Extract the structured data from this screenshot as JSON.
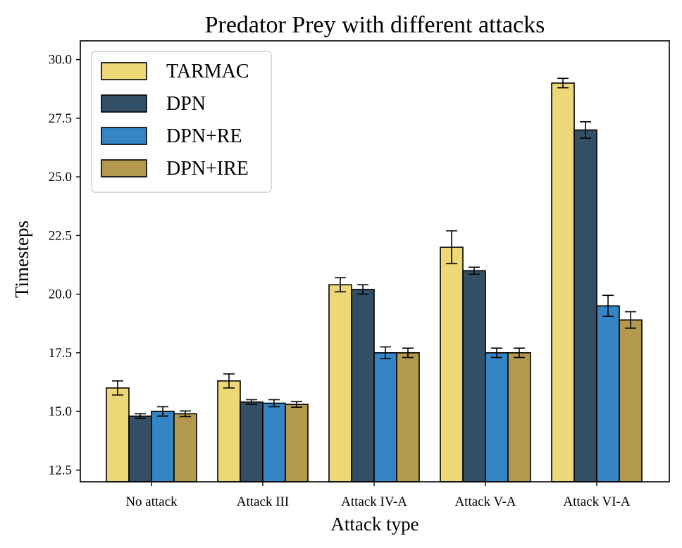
{
  "chart_data": {
    "type": "bar",
    "title": "Predator Prey with different attacks",
    "xlabel": "Attack type",
    "ylabel": "Timesteps",
    "ylim": [
      12,
      30.8
    ],
    "yticks": [
      12.5,
      15.0,
      17.5,
      20.0,
      22.5,
      25.0,
      27.5,
      30.0
    ],
    "ytick_labels": [
      "12.5",
      "15.0",
      "17.5",
      "20.0",
      "22.5",
      "25.0",
      "27.5",
      "30.0"
    ],
    "grid": false,
    "legend_position": "top-left",
    "categories": [
      "No attack",
      "Attack III",
      "Attack IV-A",
      "Attack V-A",
      "Attack VI-A"
    ],
    "series": [
      {
        "name": "TARMAC",
        "color": "#EDD777",
        "values": [
          16.0,
          16.3,
          20.4,
          22.0,
          29.0
        ],
        "errors": [
          0.3,
          0.3,
          0.3,
          0.7,
          0.2
        ]
      },
      {
        "name": "DPN",
        "color": "#324F66",
        "values": [
          14.8,
          15.4,
          20.2,
          21.0,
          27.0
        ],
        "errors": [
          0.1,
          0.1,
          0.2,
          0.15,
          0.35
        ]
      },
      {
        "name": "DPN+RE",
        "color": "#3584C4",
        "values": [
          15.0,
          15.35,
          17.5,
          17.5,
          19.5
        ],
        "errors": [
          0.2,
          0.15,
          0.25,
          0.2,
          0.45
        ]
      },
      {
        "name": "DPN+IRE",
        "color": "#B3994E",
        "values": [
          14.9,
          15.3,
          17.5,
          17.5,
          18.9
        ],
        "errors": [
          0.12,
          0.12,
          0.2,
          0.2,
          0.35
        ]
      }
    ]
  }
}
